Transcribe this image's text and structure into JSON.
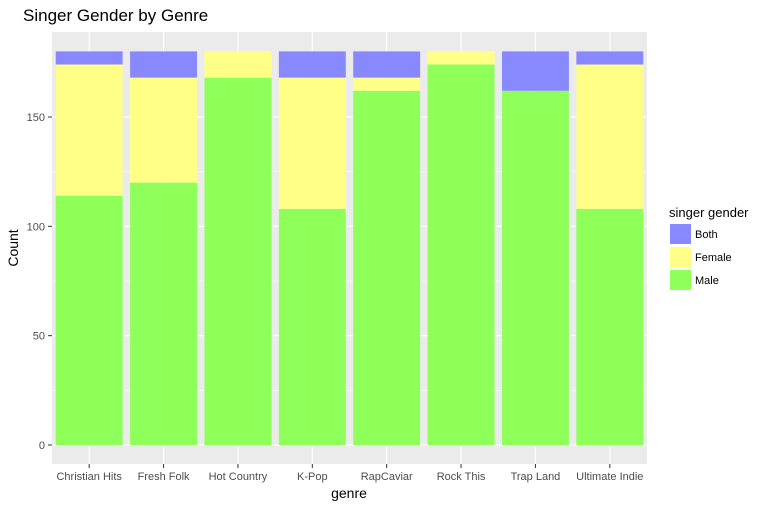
{
  "chart_data": {
    "type": "bar",
    "stacked": true,
    "title": "Singer Gender by Genre",
    "xlabel": "genre",
    "ylabel": "Count",
    "ylim": [
      0,
      180
    ],
    "yticks": [
      0,
      50,
      100,
      150
    ],
    "grid": true,
    "legend_position": "right",
    "legend_title": "singer gender",
    "categories": [
      "Christian Hits",
      "Fresh Folk",
      "Hot Country",
      "K-Pop",
      "RapCaviar",
      "Rock This",
      "Trap Land",
      "Ultimate Indie"
    ],
    "series": [
      {
        "name": "Male",
        "color": "#8FFF5A",
        "values": [
          114,
          120,
          168,
          108,
          162,
          174,
          162,
          108
        ]
      },
      {
        "name": "Female",
        "color": "#FFFF88",
        "values": [
          60,
          48,
          12,
          60,
          6,
          6,
          0,
          66
        ]
      },
      {
        "name": "Both",
        "color": "#8888FF",
        "values": [
          6,
          12,
          0,
          12,
          12,
          0,
          18,
          6
        ]
      }
    ],
    "legend_order": [
      "Both",
      "Female",
      "Male"
    ],
    "panel_background": "#EBEBEB",
    "gridline_color": "#FFFFFF"
  }
}
